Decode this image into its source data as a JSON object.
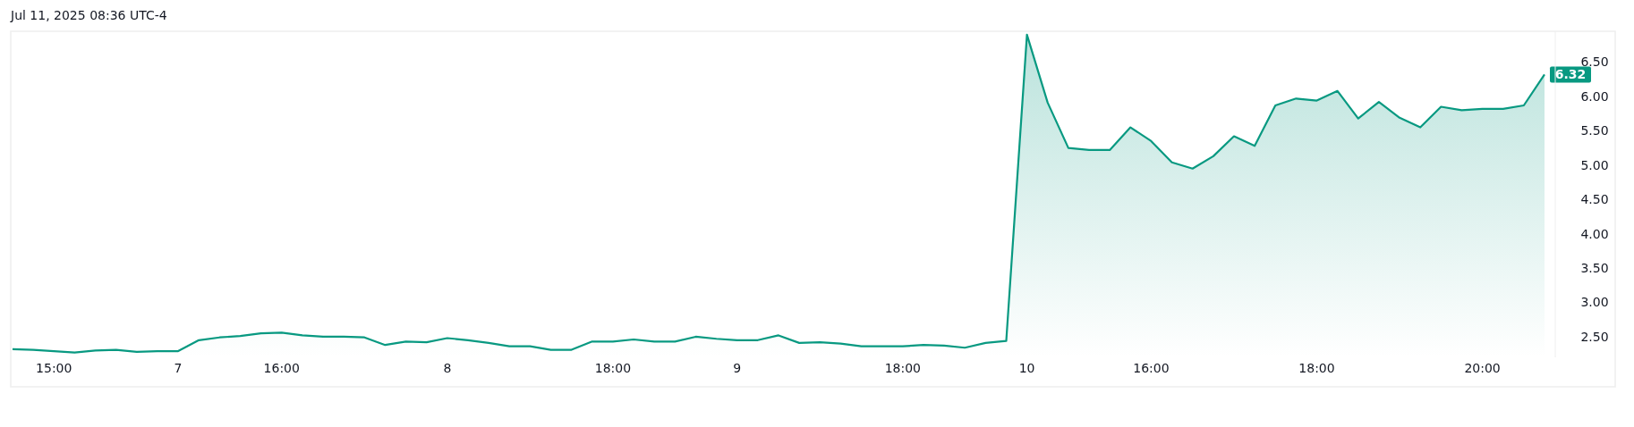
{
  "chart_data": {
    "type": "area",
    "annotations": [
      "Jul 11, 2025 08:36 UTC-4"
    ],
    "categories": [
      null,
      null,
      "15:00",
      null,
      null,
      null,
      null,
      null,
      "7",
      null,
      null,
      null,
      null,
      "16:00",
      null,
      null,
      null,
      null,
      null,
      null,
      null,
      "8",
      null,
      null,
      null,
      null,
      null,
      null,
      null,
      "18:00",
      null,
      null,
      null,
      null,
      null,
      "9",
      null,
      null,
      null,
      null,
      null,
      null,
      null,
      "18:00",
      null,
      null,
      null,
      null,
      null,
      "10",
      null,
      null,
      null,
      null,
      null,
      "16:00",
      null,
      null,
      null,
      null,
      null,
      null,
      null,
      "18:00",
      null,
      null,
      null,
      null,
      null,
      null,
      null,
      "20:00",
      null,
      null,
      null
    ],
    "series": [
      {
        "color": "#089981",
        "values": [
          2.32,
          2.31,
          2.29,
          2.27,
          2.3,
          2.31,
          2.28,
          2.29,
          2.29,
          2.45,
          2.49,
          2.51,
          2.55,
          2.56,
          2.52,
          2.5,
          2.5,
          2.49,
          2.38,
          2.43,
          2.42,
          2.48,
          2.45,
          2.41,
          2.36,
          2.36,
          2.31,
          2.31,
          2.43,
          2.43,
          2.46,
          2.43,
          2.43,
          2.5,
          2.47,
          2.45,
          2.45,
          2.52,
          2.41,
          2.42,
          2.4,
          2.36,
          2.36,
          2.36,
          2.38,
          2.37,
          2.34,
          2.41,
          2.44,
          6.9,
          5.91,
          5.25,
          5.22,
          5.22,
          5.55,
          5.35,
          5.04,
          4.95,
          5.13,
          5.42,
          5.28,
          5.87,
          5.97,
          5.94,
          6.08,
          5.68,
          5.92,
          5.69,
          5.55,
          5.85,
          5.8,
          5.82,
          5.82,
          5.87,
          6.32
        ],
        "value_labels": [
          null,
          null,
          null,
          null,
          null,
          null,
          null,
          null,
          null,
          null,
          null,
          null,
          null,
          null,
          null,
          null,
          null,
          null,
          null,
          null,
          null,
          null,
          null,
          null,
          null,
          null,
          null,
          null,
          null,
          null,
          null,
          null,
          null,
          null,
          null,
          null,
          null,
          null,
          null,
          null,
          null,
          null,
          null,
          null,
          null,
          null,
          null,
          null,
          null,
          null,
          null,
          null,
          null,
          null,
          null,
          null,
          null,
          null,
          null,
          null,
          null,
          null,
          null,
          null,
          null,
          null,
          null,
          null,
          null,
          null,
          null,
          null,
          null,
          null,
          "6.32"
        ]
      }
    ],
    "ylim": [
      2.2,
      6.95
    ],
    "yticks": [
      {
        "value": 2.5,
        "label": "2.50"
      },
      {
        "value": 3,
        "label": "3.00"
      },
      {
        "value": 3.5,
        "label": "3.50"
      },
      {
        "value": 4,
        "label": "4.00"
      },
      {
        "value": 4.5,
        "label": "4.50"
      },
      {
        "value": 5,
        "label": "5.00"
      },
      {
        "value": 5.5,
        "label": "5.50"
      },
      {
        "value": 6,
        "label": "6.00"
      },
      {
        "value": 6.5,
        "label": "6.50"
      }
    ],
    "grid": false
  }
}
